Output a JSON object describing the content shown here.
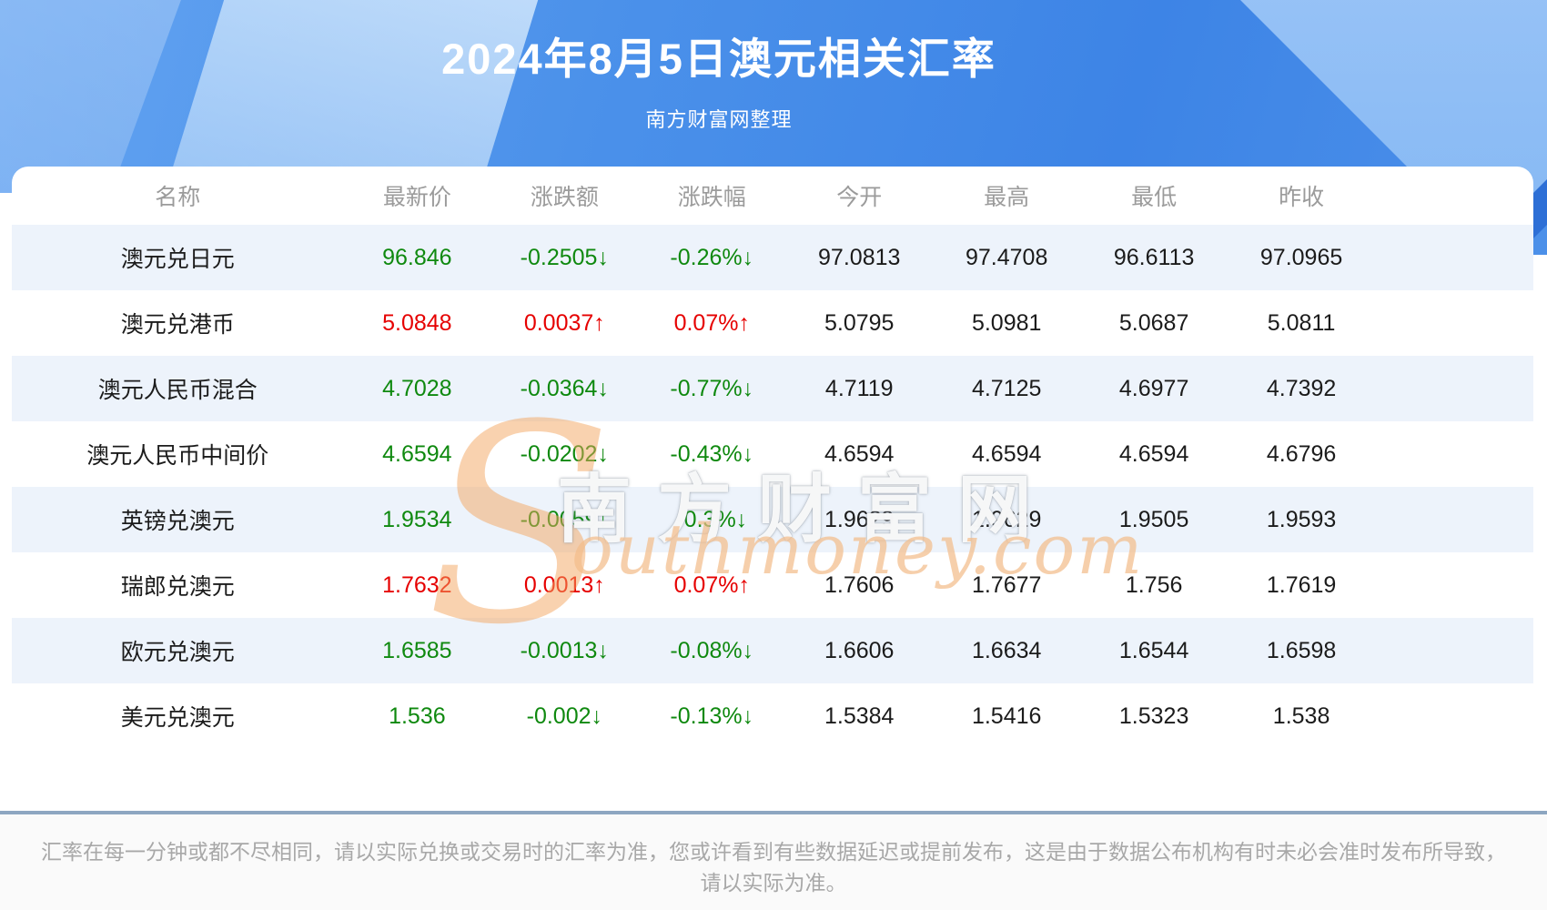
{
  "page": {
    "title": "2024年8月5日澳元相关汇率",
    "subtitle": "南方财富网整理"
  },
  "watermark": {
    "initial": "S",
    "cn": "南方财富网",
    "en_rest": "outhmoney.com"
  },
  "table": {
    "headers": [
      "名称",
      "最新价",
      "涨跌额",
      "涨跌幅",
      "今开",
      "最高",
      "最低",
      "昨收"
    ],
    "rows": [
      {
        "name": "澳元兑日元",
        "last": "96.846",
        "change": "-0.2505↓",
        "pct": "-0.26%↓",
        "open": "97.0813",
        "high": "97.4708",
        "low": "96.6113",
        "prev": "97.0965",
        "dir": "down"
      },
      {
        "name": "澳元兑港币",
        "last": "5.0848",
        "change": "0.0037↑",
        "pct": "0.07%↑",
        "open": "5.0795",
        "high": "5.0981",
        "low": "5.0687",
        "prev": "5.0811",
        "dir": "up"
      },
      {
        "name": "澳元人民币混合",
        "last": "4.7028",
        "change": "-0.0364↓",
        "pct": "-0.77%↓",
        "open": "4.7119",
        "high": "4.7125",
        "low": "4.6977",
        "prev": "4.7392",
        "dir": "down"
      },
      {
        "name": "澳元人民币中间价",
        "last": "4.6594",
        "change": "-0.0202↓",
        "pct": "-0.43%↓",
        "open": "4.6594",
        "high": "4.6594",
        "low": "4.6594",
        "prev": "4.6796",
        "dir": "down"
      },
      {
        "name": "英镑兑澳元",
        "last": "1.9534",
        "change": "-0.0059↓",
        "pct": "-0.3%↓",
        "open": "1.9629",
        "high": "1.9629",
        "low": "1.9505",
        "prev": "1.9593",
        "dir": "down"
      },
      {
        "name": "瑞郎兑澳元",
        "last": "1.7632",
        "change": "0.0013↑",
        "pct": "0.07%↑",
        "open": "1.7606",
        "high": "1.7677",
        "low": "1.756",
        "prev": "1.7619",
        "dir": "up"
      },
      {
        "name": "欧元兑澳元",
        "last": "1.6585",
        "change": "-0.0013↓",
        "pct": "-0.08%↓",
        "open": "1.6606",
        "high": "1.6634",
        "low": "1.6544",
        "prev": "1.6598",
        "dir": "down"
      },
      {
        "name": "美元兑澳元",
        "last": "1.536",
        "change": "-0.002↓",
        "pct": "-0.13%↓",
        "open": "1.5384",
        "high": "1.5416",
        "low": "1.5323",
        "prev": "1.538",
        "dir": "down"
      }
    ]
  },
  "footer": {
    "line1": "汇率在每一分钟或都不尽相同，请以实际兑换或交易时的汇率为准，您或许看到有些数据延迟或提前发布，这是由于数据公布机构有时未必会准时发布所导致，",
    "line2": "请以实际为准。"
  },
  "colors": {
    "up": "#e60000",
    "down": "#0f890f",
    "row_stripe": "#edf3fb",
    "header_text": "#9b9b9b",
    "banner_blue": "#4b91ea",
    "divider": "#8da6c1",
    "watermark_orange": "#f3a660"
  },
  "chart_data": {
    "type": "table",
    "title": "2024年8月5日澳元相关汇率",
    "subtitle": "南方财富网整理",
    "columns": [
      "名称",
      "最新价",
      "涨跌额",
      "涨跌幅",
      "今开",
      "最高",
      "最低",
      "昨收"
    ],
    "rows": [
      [
        "澳元兑日元",
        96.846,
        -0.2505,
        "-0.26%",
        97.0813,
        97.4708,
        96.6113,
        97.0965
      ],
      [
        "澳元兑港币",
        5.0848,
        0.0037,
        "0.07%",
        5.0795,
        5.0981,
        5.0687,
        5.0811
      ],
      [
        "澳元人民币混合",
        4.7028,
        -0.0364,
        "-0.77%",
        4.7119,
        4.7125,
        4.6977,
        4.7392
      ],
      [
        "澳元人民币中间价",
        4.6594,
        -0.0202,
        "-0.43%",
        4.6594,
        4.6594,
        4.6594,
        4.6796
      ],
      [
        "英镑兑澳元",
        1.9534,
        -0.0059,
        "-0.3%",
        1.9629,
        1.9629,
        1.9505,
        1.9593
      ],
      [
        "瑞郎兑澳元",
        1.7632,
        0.0013,
        "0.07%",
        1.7606,
        1.7677,
        1.756,
        1.7619
      ],
      [
        "欧元兑澳元",
        1.6585,
        -0.0013,
        "-0.08%",
        1.6606,
        1.6634,
        1.6544,
        1.6598
      ],
      [
        "美元兑澳元",
        1.536,
        -0.002,
        "-0.13%",
        1.5384,
        1.5416,
        1.5323,
        1.538
      ]
    ]
  }
}
